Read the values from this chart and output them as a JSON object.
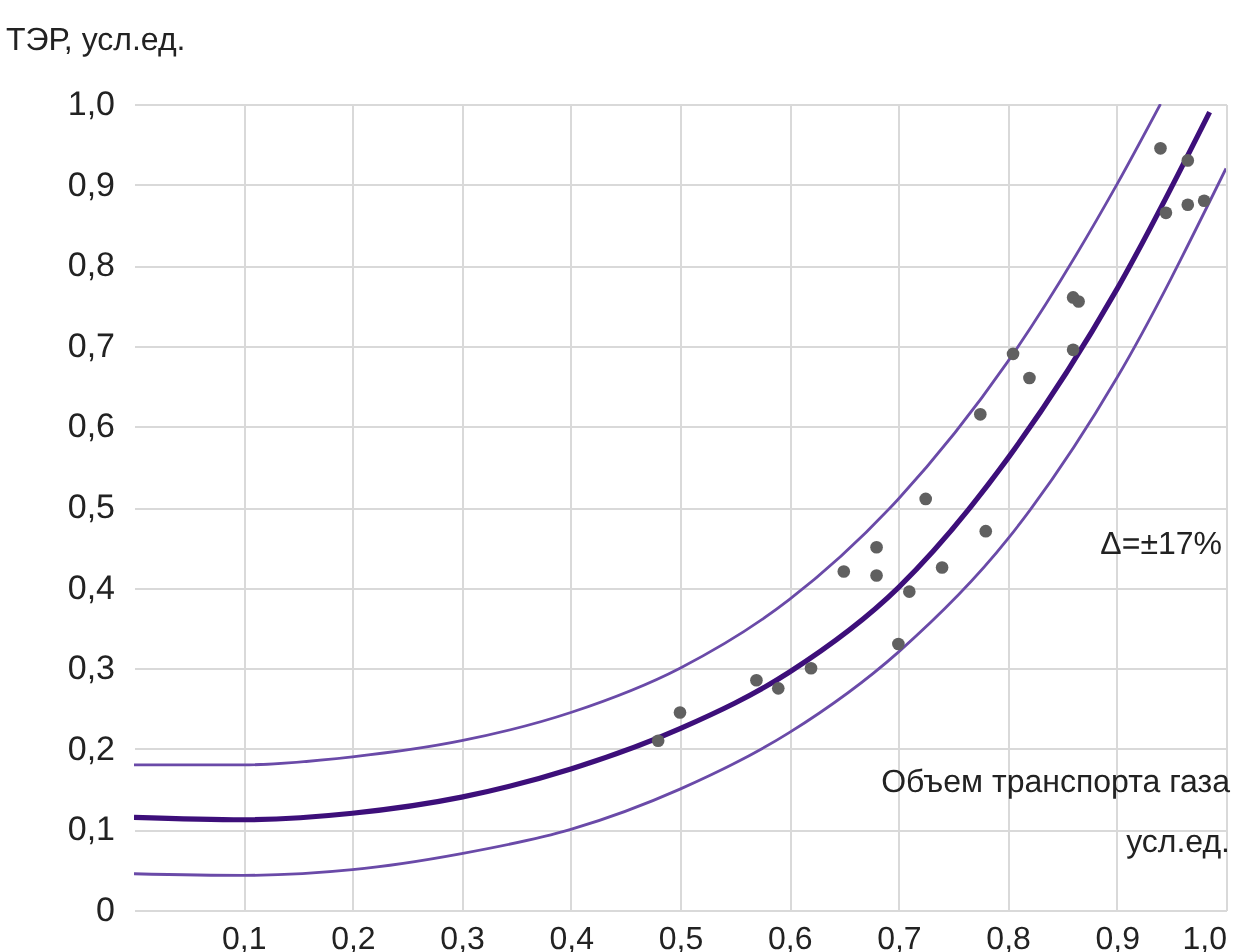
{
  "chart_data": {
    "type": "scatter",
    "xlabel": "Объем транспорта газа\nусл.ед.",
    "ylabel": "ТЭР, усл.ед.",
    "xlim": [
      0,
      1
    ],
    "ylim": [
      0,
      1
    ],
    "xticks": [
      {
        "value": 0.1,
        "label": "0,1"
      },
      {
        "value": 0.2,
        "label": "0,2"
      },
      {
        "value": 0.3,
        "label": "0,3"
      },
      {
        "value": 0.4,
        "label": "0,4"
      },
      {
        "value": 0.5,
        "label": "0,5"
      },
      {
        "value": 0.6,
        "label": "0,6"
      },
      {
        "value": 0.7,
        "label": "0,7"
      },
      {
        "value": 0.8,
        "label": "0,8"
      },
      {
        "value": 0.9,
        "label": "0,9"
      },
      {
        "value": 1.0,
        "label": "1,0"
      }
    ],
    "yticks": [
      0,
      {
        "value": 0.1,
        "label": "0,1"
      },
      {
        "value": 0.2,
        "label": "0,2"
      },
      {
        "value": 0.3,
        "label": "0,3"
      },
      {
        "value": 0.4,
        "label": "0,4"
      },
      {
        "value": 0.5,
        "label": "0,5"
      },
      {
        "value": 0.6,
        "label": "0,6"
      },
      {
        "value": 0.7,
        "label": "0,7"
      },
      {
        "value": 0.8,
        "label": "0,8"
      },
      {
        "value": 0.9,
        "label": "0,9"
      },
      {
        "value": 1.0,
        "label": "1,0"
      }
    ],
    "grid": true,
    "annotations": [
      "Δ=±17%"
    ],
    "series": [
      {
        "type": "line",
        "color": "#6a4aa8",
        "x": [
          0,
          0.1,
          0.2,
          0.3,
          0.4,
          0.5,
          0.6,
          0.7,
          0.8,
          0.9,
          0.94
        ],
        "values": [
          0.18,
          0.18,
          0.19,
          0.21,
          0.245,
          0.3,
          0.385,
          0.51,
          0.68,
          0.9,
          1.0
        ]
      },
      {
        "type": "line",
        "color": "#3d0f7a",
        "x": [
          0,
          0.1,
          0.2,
          0.3,
          0.4,
          0.5,
          0.6,
          0.7,
          0.8,
          0.9,
          0.985
        ],
        "values": [
          0.115,
          0.112,
          0.12,
          0.14,
          0.175,
          0.225,
          0.295,
          0.4,
          0.56,
          0.77,
          0.99
        ]
      },
      {
        "type": "line",
        "color": "#6a4aa8",
        "x": [
          0,
          0.1,
          0.2,
          0.3,
          0.4,
          0.5,
          0.6,
          0.7,
          0.8,
          0.9,
          1.0
        ],
        "values": [
          0.045,
          0.043,
          0.05,
          0.07,
          0.1,
          0.15,
          0.22,
          0.32,
          0.46,
          0.66,
          0.92
        ]
      },
      {
        "marker": "circle",
        "color": "#606060",
        "x": [
          0.48,
          0.5,
          0.57,
          0.59,
          0.62,
          0.65,
          0.68,
          0.68,
          0.7,
          0.71,
          0.725,
          0.74,
          0.78,
          0.775,
          0.805,
          0.82,
          0.86,
          0.865,
          0.86,
          0.94,
          0.945,
          0.965,
          0.965,
          0.98
        ],
        "values": [
          0.21,
          0.245,
          0.285,
          0.275,
          0.3,
          0.42,
          0.45,
          0.415,
          0.33,
          0.395,
          0.51,
          0.425,
          0.47,
          0.615,
          0.69,
          0.66,
          0.76,
          0.755,
          0.695,
          0.945,
          0.865,
          0.93,
          0.875,
          0.88
        ]
      }
    ]
  }
}
